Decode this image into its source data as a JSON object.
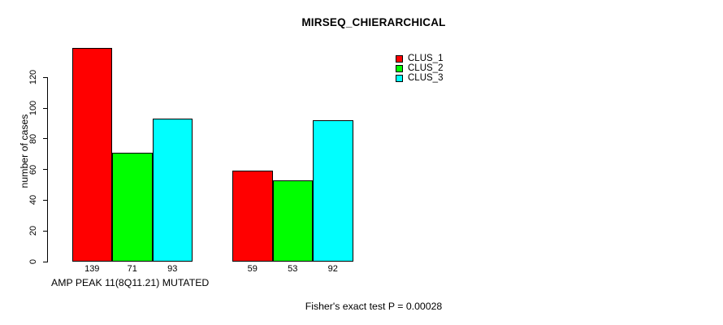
{
  "chart_data": {
    "type": "bar",
    "title": "MIRSEQ_CHIERARCHICAL",
    "ylabel": "number of cases",
    "xlabel": "AMP PEAK 11(8Q11.21) MUTATED",
    "annotation": "Fisher's exact test P = 0.00028",
    "ylim": [
      0,
      120
    ],
    "yticks": [
      0,
      20,
      40,
      60,
      80,
      100,
      120
    ],
    "grid": false,
    "legend_position": "top-right",
    "num_groups": 2,
    "series": [
      {
        "name": "CLUS_1",
        "color": "#ff0000",
        "values": [
          139,
          59
        ]
      },
      {
        "name": "CLUS_2",
        "color": "#00ff00",
        "values": [
          71,
          53
        ]
      },
      {
        "name": "CLUS_3",
        "color": "#00ffff",
        "values": [
          93,
          92
        ]
      }
    ],
    "bar_value_labels": [
      [
        139,
        71,
        93
      ],
      [
        59,
        53,
        92
      ]
    ]
  }
}
